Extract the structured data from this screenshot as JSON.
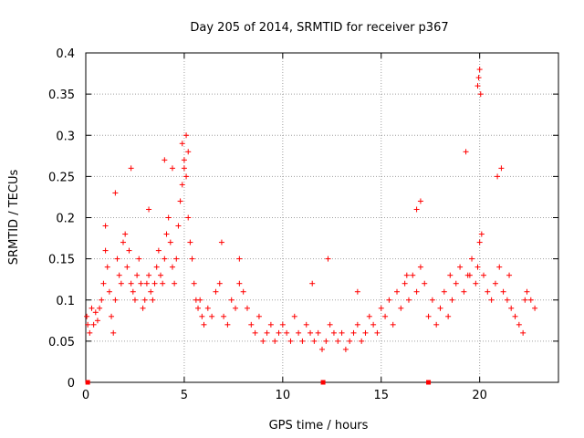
{
  "chart_data": {
    "type": "scatter",
    "title": "Day 205 of 2014, SRMTID for receiver p367",
    "xlabel": "GPS time / hours",
    "ylabel": "SRMTID / TECUs",
    "xlim": [
      0,
      24
    ],
    "ylim": [
      0,
      0.4
    ],
    "xticks": [
      0,
      5,
      10,
      15,
      20
    ],
    "xtick_labels": [
      "0",
      "5",
      "10",
      "15",
      "20"
    ],
    "yticks": [
      0,
      0.05,
      0.1,
      0.15,
      0.2,
      0.25,
      0.3,
      0.35,
      0.4
    ],
    "ytick_labels": [
      "0",
      "0.05",
      "0.1",
      "0.15",
      "0.2",
      "0.25",
      "0.3",
      "0.35",
      "0.4"
    ],
    "grid": true,
    "marker": "plus",
    "color": "#ff0000",
    "series": [
      {
        "name": "SRMTID",
        "x": [
          0.05,
          0.1,
          0.2,
          0.3,
          0.4,
          0.5,
          0.6,
          0.7,
          0.8,
          0.9,
          1.0,
          1.1,
          1.2,
          1.3,
          1.4,
          1.5,
          1.6,
          1.7,
          1.8,
          1.9,
          2.0,
          2.1,
          2.2,
          2.3,
          2.4,
          2.5,
          2.6,
          2.7,
          2.8,
          2.9,
          3.0,
          3.1,
          3.2,
          3.3,
          3.4,
          3.5,
          3.6,
          3.7,
          3.8,
          3.9,
          4.0,
          4.1,
          4.2,
          4.3,
          4.4,
          4.5,
          4.6,
          4.7,
          4.8,
          4.9,
          5.0,
          5.1,
          5.2,
          5.3,
          5.4,
          5.5,
          5.6,
          5.7,
          5.8,
          5.9,
          6.0,
          6.2,
          6.4,
          6.6,
          6.8,
          7.0,
          7.2,
          7.4,
          7.6,
          7.8,
          8.0,
          8.2,
          8.4,
          8.6,
          8.8,
          9.0,
          9.2,
          9.4,
          9.6,
          9.8,
          10.0,
          10.2,
          10.4,
          10.6,
          10.8,
          11.0,
          11.2,
          11.4,
          11.6,
          11.8,
          12.0,
          12.2,
          12.4,
          12.6,
          12.8,
          13.0,
          13.2,
          13.4,
          13.6,
          13.8,
          14.0,
          14.2,
          14.4,
          14.6,
          14.8,
          15.0,
          15.2,
          15.4,
          15.6,
          15.8,
          16.0,
          16.2,
          16.4,
          16.6,
          16.8,
          17.0,
          17.2,
          17.4,
          17.6,
          17.8,
          18.0,
          18.2,
          18.4,
          18.6,
          18.8,
          19.0,
          19.2,
          19.4,
          19.6,
          19.8,
          19.9,
          20.0,
          20.1,
          20.2,
          20.4,
          20.6,
          20.8,
          21.0,
          21.2,
          21.4,
          21.6,
          21.8,
          22.0,
          22.2,
          22.4,
          22.6,
          22.8,
          1.5,
          2.3,
          4.0,
          4.9,
          5.1,
          5.2,
          5.0,
          4.4,
          19.9,
          20.0,
          19.95,
          20.05,
          19.3,
          17.0,
          16.8,
          20.9,
          21.1,
          1.0,
          3.2,
          6.9,
          7.8,
          11.5,
          12.3,
          13.8,
          16.3,
          18.5,
          19.5,
          21.5,
          22.3
        ],
        "y": [
          0.08,
          0.07,
          0.06,
          0.09,
          0.07,
          0.085,
          0.075,
          0.09,
          0.1,
          0.12,
          0.16,
          0.14,
          0.11,
          0.08,
          0.06,
          0.1,
          0.15,
          0.13,
          0.12,
          0.17,
          0.18,
          0.14,
          0.16,
          0.12,
          0.11,
          0.1,
          0.13,
          0.15,
          0.12,
          0.09,
          0.1,
          0.12,
          0.13,
          0.11,
          0.1,
          0.12,
          0.14,
          0.16,
          0.13,
          0.12,
          0.15,
          0.18,
          0.2,
          0.17,
          0.14,
          0.12,
          0.15,
          0.19,
          0.22,
          0.24,
          0.26,
          0.25,
          0.2,
          0.17,
          0.15,
          0.12,
          0.1,
          0.09,
          0.1,
          0.08,
          0.07,
          0.09,
          0.08,
          0.11,
          0.12,
          0.08,
          0.07,
          0.1,
          0.09,
          0.12,
          0.11,
          0.09,
          0.07,
          0.06,
          0.08,
          0.05,
          0.06,
          0.07,
          0.05,
          0.06,
          0.07,
          0.06,
          0.05,
          0.08,
          0.06,
          0.05,
          0.07,
          0.06,
          0.05,
          0.06,
          0.04,
          0.05,
          0.07,
          0.06,
          0.05,
          0.06,
          0.04,
          0.05,
          0.06,
          0.07,
          0.05,
          0.06,
          0.08,
          0.07,
          0.06,
          0.09,
          0.08,
          0.1,
          0.07,
          0.11,
          0.09,
          0.12,
          0.1,
          0.13,
          0.11,
          0.14,
          0.12,
          0.08,
          0.1,
          0.07,
          0.09,
          0.11,
          0.08,
          0.1,
          0.12,
          0.14,
          0.11,
          0.13,
          0.15,
          0.12,
          0.14,
          0.17,
          0.18,
          0.13,
          0.11,
          0.1,
          0.12,
          0.14,
          0.11,
          0.1,
          0.09,
          0.08,
          0.07,
          0.06,
          0.11,
          0.1,
          0.09,
          0.23,
          0.26,
          0.27,
          0.29,
          0.3,
          0.28,
          0.27,
          0.26,
          0.36,
          0.38,
          0.37,
          0.35,
          0.28,
          0.22,
          0.21,
          0.25,
          0.26,
          0.19,
          0.21,
          0.17,
          0.15,
          0.12,
          0.15,
          0.11,
          0.13,
          0.13,
          0.13,
          0.13,
          0.1
        ],
        "x_markers": [
          0.1,
          12.05,
          17.4
        ]
      }
    ]
  }
}
